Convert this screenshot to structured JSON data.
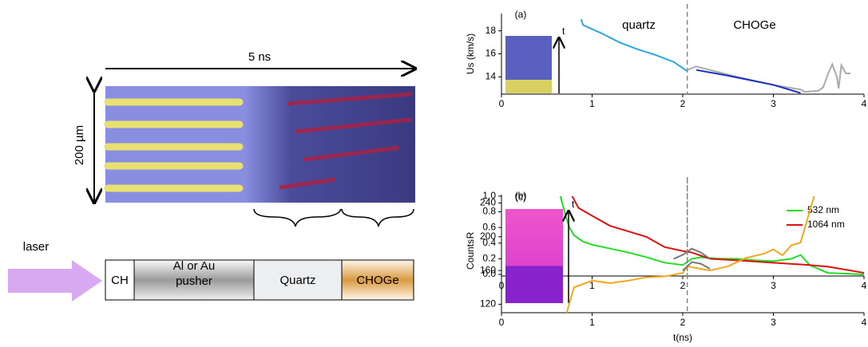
{
  "diagram": {
    "time_label": "5 ns",
    "size_label": "200 µm",
    "laser_label": "laser",
    "layers": [
      "CH",
      "Al or Au pusher",
      "Quartz",
      "CHOGe"
    ]
  },
  "chart_data": [
    {
      "type": "line",
      "panel": "(a)",
      "ylabel": "Us (km/s)",
      "annotations": [
        "quartz",
        "CHOGe"
      ],
      "inset_label": "t",
      "xlim": [
        0,
        4
      ],
      "xticks": [
        0,
        1,
        2,
        3,
        4
      ],
      "ylim": [
        12.5,
        19.5
      ],
      "yticks": [
        14,
        16,
        18
      ],
      "vline": 2.05,
      "series": [
        {
          "color": "#2aa6e2",
          "x": [
            0.88,
            0.9,
            1.1,
            1.3,
            1.5,
            1.7,
            1.9,
            2.05
          ],
          "values": [
            19.0,
            18.5,
            17.8,
            17.0,
            16.4,
            15.9,
            15.3,
            14.5
          ]
        },
        {
          "color": "#aaaaaa",
          "x": [
            2.05,
            2.15,
            2.3,
            2.6,
            3.0,
            3.3,
            3.35,
            3.5,
            3.55,
            3.6,
            3.65,
            3.7,
            3.72,
            3.75,
            3.8,
            3.85
          ],
          "values": [
            14.6,
            14.9,
            14.6,
            14.0,
            13.3,
            12.9,
            12.7,
            12.8,
            13.1,
            14.2,
            15.1,
            14.0,
            13.0,
            15.0,
            14.3,
            14.3
          ]
        },
        {
          "color": "#1a2fbf",
          "x": [
            2.15,
            2.5,
            3.0,
            3.3
          ],
          "values": [
            14.6,
            14.1,
            13.3,
            12.6
          ]
        }
      ]
    },
    {
      "type": "line",
      "panel": "(b)",
      "ylabel": "R",
      "xlim": [
        0,
        4
      ],
      "xticks": [
        0,
        1,
        2,
        3,
        4
      ],
      "ylim": [
        -0.02,
        1.02
      ],
      "yticks": [
        {
          "value": 0,
          "label": "0.0"
        },
        0.2,
        0.4,
        0.6,
        0.8,
        {
          "value": 1,
          "label": "1.0"
        }
      ],
      "vline": 2.05,
      "series": [
        {
          "name": "532 nm",
          "color": "#22dd22",
          "x": [
            0.65,
            0.72,
            0.75,
            0.8,
            0.9,
            1.0,
            1.2,
            1.4,
            1.6,
            1.8,
            2.0,
            2.1,
            2.2,
            2.4,
            2.6,
            2.8,
            3.0,
            3.2,
            3.3,
            3.4,
            3.6,
            4.0
          ],
          "values": [
            1.0,
            0.7,
            0.6,
            0.5,
            0.42,
            0.38,
            0.33,
            0.28,
            0.22,
            0.15,
            0.12,
            0.2,
            0.22,
            0.2,
            0.2,
            0.18,
            0.17,
            0.2,
            0.25,
            0.12,
            0.02,
            0.0
          ]
        },
        {
          "name": "1064 nm",
          "color": "#dd1111",
          "x": [
            0.78,
            0.85,
            1.0,
            1.2,
            1.4,
            1.6,
            1.8,
            2.0,
            2.1,
            2.3,
            2.6,
            3.0,
            3.4,
            3.6,
            3.8,
            4.0
          ],
          "values": [
            1.0,
            0.85,
            0.75,
            0.62,
            0.55,
            0.48,
            0.35,
            0.3,
            0.28,
            0.2,
            0.18,
            0.15,
            0.12,
            0.1,
            0.06,
            0.02
          ]
        },
        {
          "color": "#777777",
          "x": [
            1.9,
            2.0,
            2.1,
            2.2,
            2.3
          ],
          "values": [
            0.2,
            0.25,
            0.33,
            0.28,
            0.2
          ]
        }
      ]
    },
    {
      "type": "line",
      "panel": "(c)",
      "ylabel": "Counts",
      "xlabel": "t(ns)",
      "inset_label": "t",
      "xlim": [
        0,
        4
      ],
      "xticks": [
        0,
        1,
        2,
        3,
        4
      ],
      "ylim": [
        110,
        248
      ],
      "yticks": [
        120,
        160,
        200,
        240
      ],
      "vline": 2.05,
      "series": [
        {
          "color": "#f0a820",
          "x": [
            0.72,
            0.8,
            1.0,
            1.2,
            1.4,
            1.6,
            1.8,
            2.0,
            2.05,
            2.3,
            2.5,
            2.7,
            2.9,
            3.0,
            3.1,
            3.2,
            3.3,
            3.4,
            3.45
          ],
          "values": [
            110,
            140,
            148,
            145,
            148,
            152,
            153,
            157,
            165,
            160,
            165,
            175,
            180,
            185,
            178,
            190,
            193,
            230,
            248
          ]
        },
        {
          "color": "#777777",
          "x": [
            2.0,
            2.1,
            2.2,
            2.3
          ],
          "values": [
            160,
            170,
            168,
            162
          ]
        }
      ]
    }
  ]
}
